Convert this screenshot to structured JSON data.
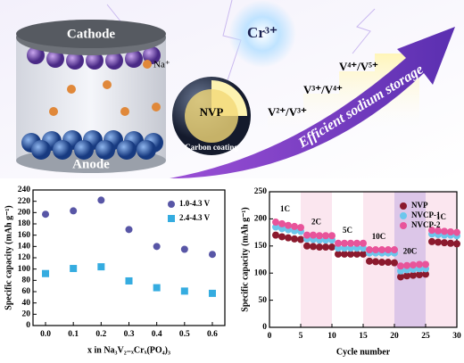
{
  "illustration": {
    "cathode": "Cathode",
    "anode": "Anode",
    "sodium_ion": "Na⁺",
    "dopant": "Cr³⁺",
    "particle": "NVP",
    "coating": "Carbon coating",
    "couples": [
      "V²⁺/V³⁺",
      "V³⁺/V⁴⁺",
      "V⁴⁺/V⁵⁺"
    ],
    "arrow_text": "Efficient sodium storage"
  },
  "chart_data": [
    {
      "type": "scatter",
      "xlabel": "x in Na₃V₂₋ₓCrₓ(PO₄)₃",
      "ylabel": "Specific capacity (mAh g⁻¹)",
      "x": [
        0,
        0.1,
        0.2,
        0.3,
        0.4,
        0.5,
        0.6
      ],
      "series": [
        {
          "name": "1.0-4.3 V",
          "color": "#5856a6",
          "marker": "circle",
          "values": [
            197,
            203,
            222,
            170,
            140,
            135,
            126
          ]
        },
        {
          "name": "2.4-4.3 V",
          "color": "#35ace0",
          "marker": "square",
          "values": [
            92,
            101,
            104,
            79,
            67,
            61,
            57
          ]
        }
      ],
      "xlim": [
        -0.045,
        0.645
      ],
      "xticks": [
        {
          "value": 0,
          "label": "0.0"
        },
        0.1,
        0.2,
        0.3,
        0.4,
        0.5,
        0.6
      ],
      "ylim": [
        0,
        240
      ],
      "yticks": [
        0,
        20,
        40,
        60,
        80,
        100,
        120,
        140,
        160,
        180,
        200,
        220,
        240
      ],
      "legend": "upper right"
    },
    {
      "type": "scatter",
      "xlabel": "Cycle number",
      "ylabel": "Specific capacity (mAh g⁻¹)",
      "x": [
        1,
        2,
        3,
        4,
        5,
        6,
        7,
        8,
        9,
        10,
        11,
        12,
        13,
        14,
        15,
        16,
        17,
        18,
        19,
        20,
        21,
        22,
        23,
        24,
        25,
        26,
        27,
        28,
        29,
        30
      ],
      "series": [
        {
          "name": "NVP",
          "color": "#8b1a2e",
          "marker": "circle",
          "values": [
            170,
            167,
            165,
            163,
            162,
            150,
            149,
            148,
            148,
            148,
            135,
            135,
            135,
            135,
            135,
            122,
            121,
            120,
            120,
            119,
            93,
            95,
            96,
            97,
            98,
            158,
            157,
            156,
            155,
            154
          ]
        },
        {
          "name": "NVCP-1",
          "color": "#6cc6ec",
          "marker": "circle",
          "values": [
            185,
            182,
            180,
            178,
            177,
            163,
            162,
            161,
            161,
            161,
            146,
            146,
            146,
            146,
            146,
            137,
            137,
            137,
            137,
            137,
            104,
            106,
            107,
            108,
            108,
            172,
            171,
            170,
            170,
            169
          ]
        },
        {
          "name": "NVCP-2",
          "color": "#e8549a",
          "marker": "circle",
          "values": [
            194,
            191,
            188,
            186,
            184,
            170,
            170,
            169,
            169,
            169,
            155,
            155,
            155,
            155,
            155,
            143,
            143,
            143,
            143,
            143,
            113,
            114,
            115,
            116,
            116,
            179,
            178,
            177,
            176,
            175
          ]
        }
      ],
      "regions": [
        {
          "label": "1C",
          "from": 0,
          "to": 5,
          "color": "#ffffff"
        },
        {
          "label": "2C",
          "from": 5,
          "to": 10,
          "color": "#fbe6ef"
        },
        {
          "label": "5C",
          "from": 10,
          "to": 15,
          "color": "#ffffff"
        },
        {
          "label": "10C",
          "from": 15,
          "to": 20,
          "color": "#fbe6ef"
        },
        {
          "label": "20C",
          "from": 20,
          "to": 25,
          "color": "#dcc6e8"
        },
        {
          "label": "1C",
          "from": 25,
          "to": 30,
          "color": "#fbe6ef"
        }
      ],
      "xlim": [
        0,
        30
      ],
      "xticks": [
        0,
        5,
        10,
        15,
        20,
        25,
        30
      ],
      "ylim": [
        0,
        250
      ],
      "yticks": [
        0,
        50,
        100,
        150,
        200,
        250
      ],
      "legend": "upper right"
    }
  ]
}
